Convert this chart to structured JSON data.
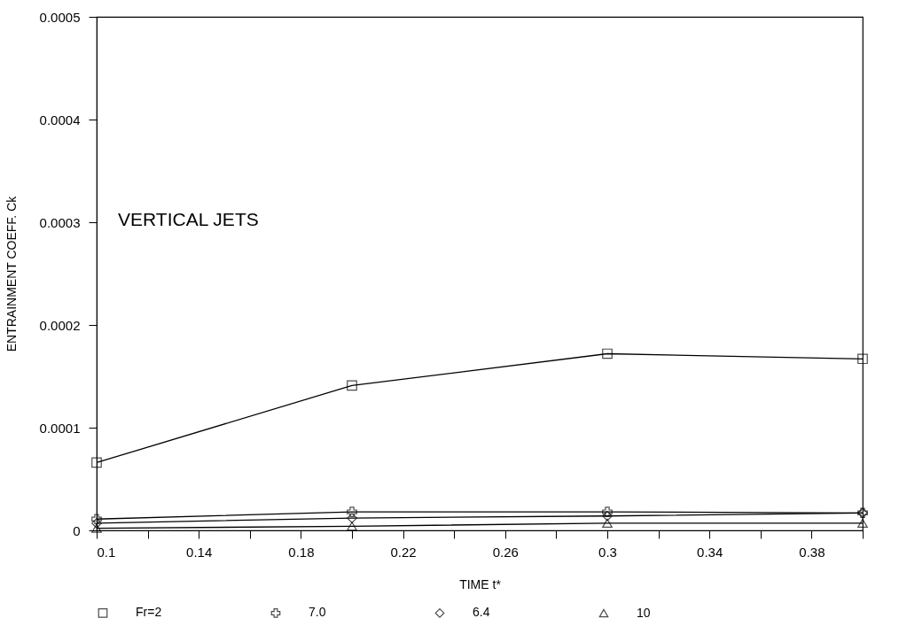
{
  "chart_data": {
    "type": "line",
    "title": "VERTICAL JETS",
    "xlabel": "TIME t*",
    "ylabel": "ENTRAINMENT COEFF.   Ck",
    "x": [
      0.1,
      0.2,
      0.3,
      0.4
    ],
    "series": [
      {
        "name": "Fr=2",
        "color": "#000000",
        "marker": "square",
        "values": [
          6.6e-05,
          0.000141,
          0.000172,
          0.000167
        ]
      },
      {
        "name": "7.0",
        "color": "#000000",
        "marker": "cross",
        "values": [
          1.1e-05,
          1.8e-05,
          1.8e-05,
          1.7e-05
        ]
      },
      {
        "name": "6.4",
        "color": "#000000",
        "marker": "diamond",
        "values": [
          7e-06,
          1.2e-05,
          1.4e-05,
          1.7e-05
        ]
      },
      {
        "name": "10",
        "color": "#000000",
        "marker": "triangle",
        "values": [
          2e-06,
          4e-06,
          7e-06,
          7e-06
        ]
      }
    ],
    "xlim": [
      0.1,
      0.4
    ],
    "xticks": [
      0.1,
      {
        "value": 0.12,
        "label": null
      },
      0.14,
      {
        "value": 0.16,
        "label": null
      },
      0.18,
      {
        "value": 0.2,
        "label": null
      },
      0.22,
      {
        "value": 0.24,
        "label": null
      },
      0.26,
      {
        "value": 0.28,
        "label": null
      },
      0.3,
      {
        "value": 0.32,
        "label": null
      },
      0.34,
      {
        "value": 0.36,
        "label": null
      },
      0.38,
      {
        "value": 0.4,
        "label": null
      }
    ],
    "ylim": [
      0,
      0.0005
    ],
    "yticks": [
      0,
      0.0001,
      0.0002,
      0.0003,
      0.0004,
      0.0005
    ],
    "grid": false,
    "legend": "bottom",
    "line_style": "solid"
  }
}
